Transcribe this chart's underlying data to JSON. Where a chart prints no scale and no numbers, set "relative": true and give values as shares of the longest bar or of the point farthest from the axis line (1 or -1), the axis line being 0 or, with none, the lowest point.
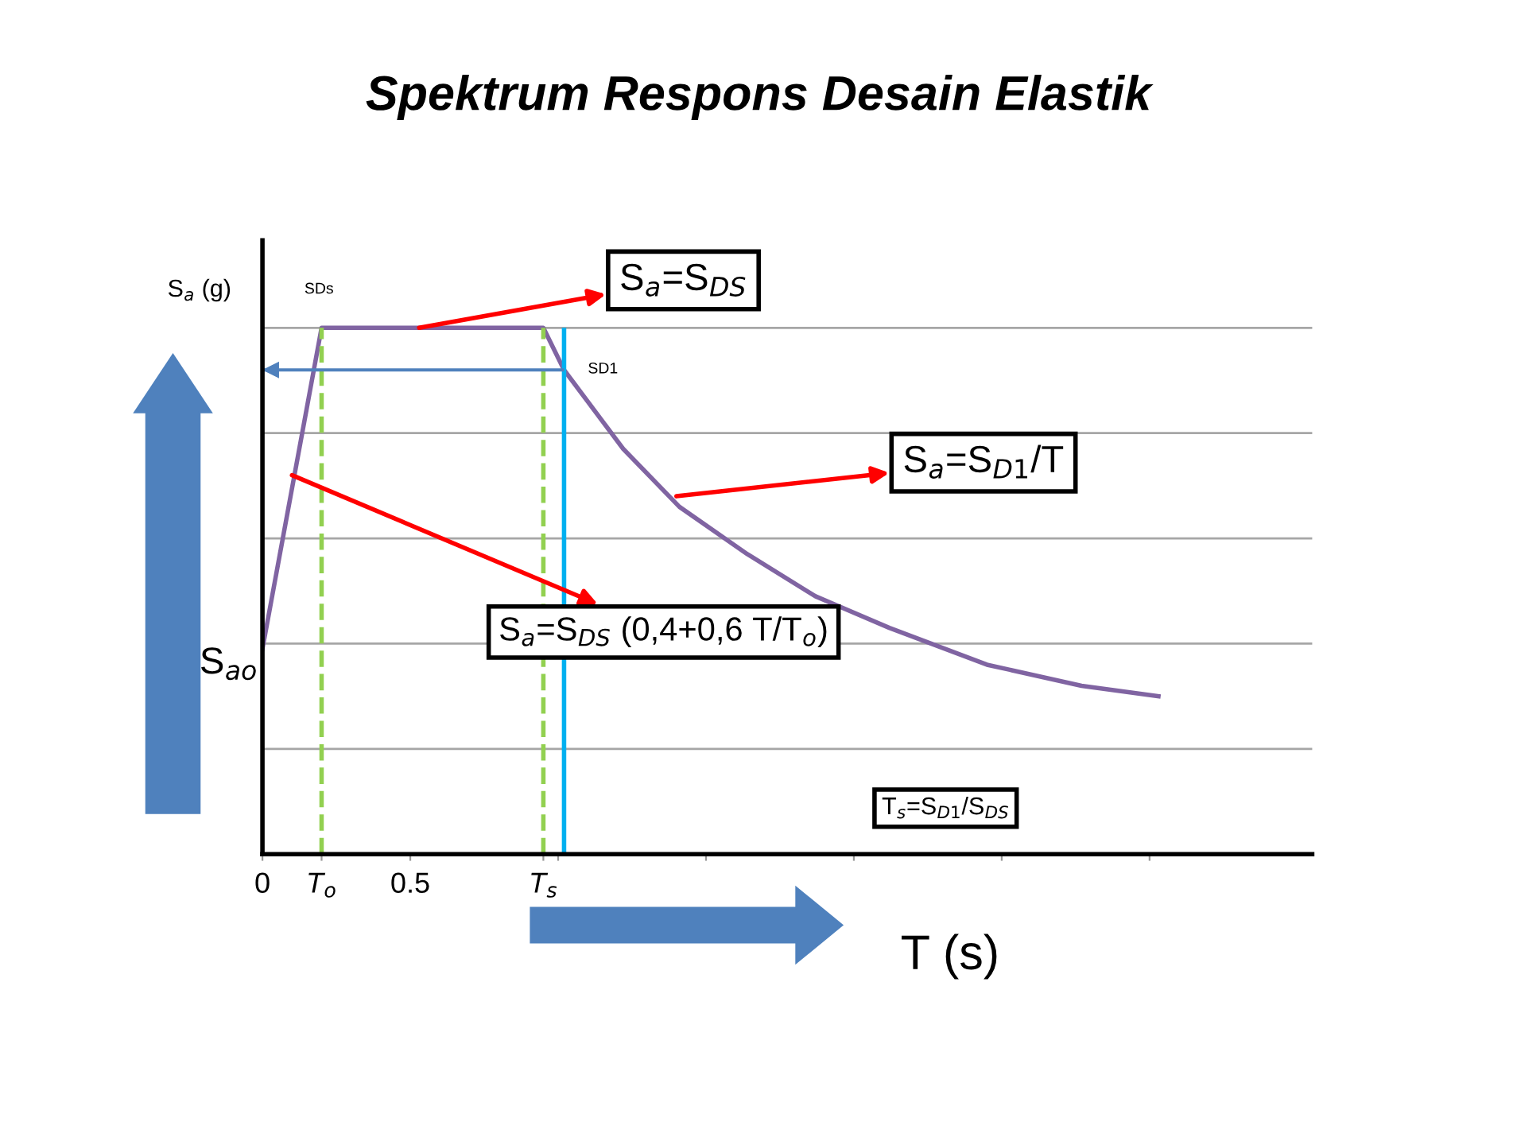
{
  "chart_data": {
    "type": "line",
    "title": "Spektrum Respons Desain Elastik",
    "xlabel": "T (s)",
    "ylabel": "S$_{a}$ (g)",
    "relative": true,
    "series": [
      {
        "color": "#8064a2",
        "x": [
          0,
          0.2,
          0.95,
          1.02,
          1.22,
          1.41,
          1.64,
          1.87,
          2.12,
          2.45,
          2.77,
          3.03
        ],
        "values": [
          0.39,
          1,
          1,
          0.92,
          0.77,
          0.66,
          0.57,
          0.49,
          0.43,
          0.36,
          0.32,
          0.3
        ]
      }
    ],
    "xlim": [
      0,
      3.55
    ],
    "xticks": [
      0,
      {
        "value": 0.2,
        "label": "T$_{o}$"
      },
      0.5,
      {
        "value": 0.95,
        "label": "T$_{s}$"
      },
      {
        "value": 1,
        "label": null
      },
      {
        "value": 1.5,
        "label": null
      },
      {
        "value": 2,
        "label": null
      },
      {
        "value": 2.5,
        "label": null
      },
      {
        "value": 3,
        "label": null
      }
    ],
    "grid": "y",
    "marker": "none",
    "line_style": "solid",
    "ref_lines": [
      {
        "axis": "x",
        "value": 0.2,
        "color": "#92d050",
        "line_style": "dashed"
      },
      {
        "axis": "x",
        "value": 0.95,
        "color": "#92d050",
        "line_style": "dashed"
      },
      {
        "axis": "x",
        "value": 1.02,
        "color": "#00b0f0",
        "line_style": "solid"
      },
      {
        "axis": "y",
        "value": 0.92,
        "color": "#4f81bd",
        "line_style": "solid"
      }
    ],
    "annotations": [
      {
        "text": "S$_{a}$=S$_{DS}$",
        "x": 0.53,
        "y": 1
      },
      {
        "text": "S$_{a}$=S$_{D1}$/T",
        "x": 1.4,
        "y": 0.68
      },
      {
        "text": "S$_{a}$=S$_{DS}$ (0,4+0,6 T/T$_{o}$)",
        "x": 0.1,
        "y": 0.72
      },
      "T$_{s}$=S$_{D1}$/S$_{DS}$",
      {
        "text": "SDs",
        "x": 0.2,
        "y": 1
      },
      {
        "text": "SD1",
        "x": 1.02,
        "y": 0.92
      },
      {
        "text": "S$_{ao}$",
        "x": 0,
        "y": 0.39
      }
    ]
  }
}
